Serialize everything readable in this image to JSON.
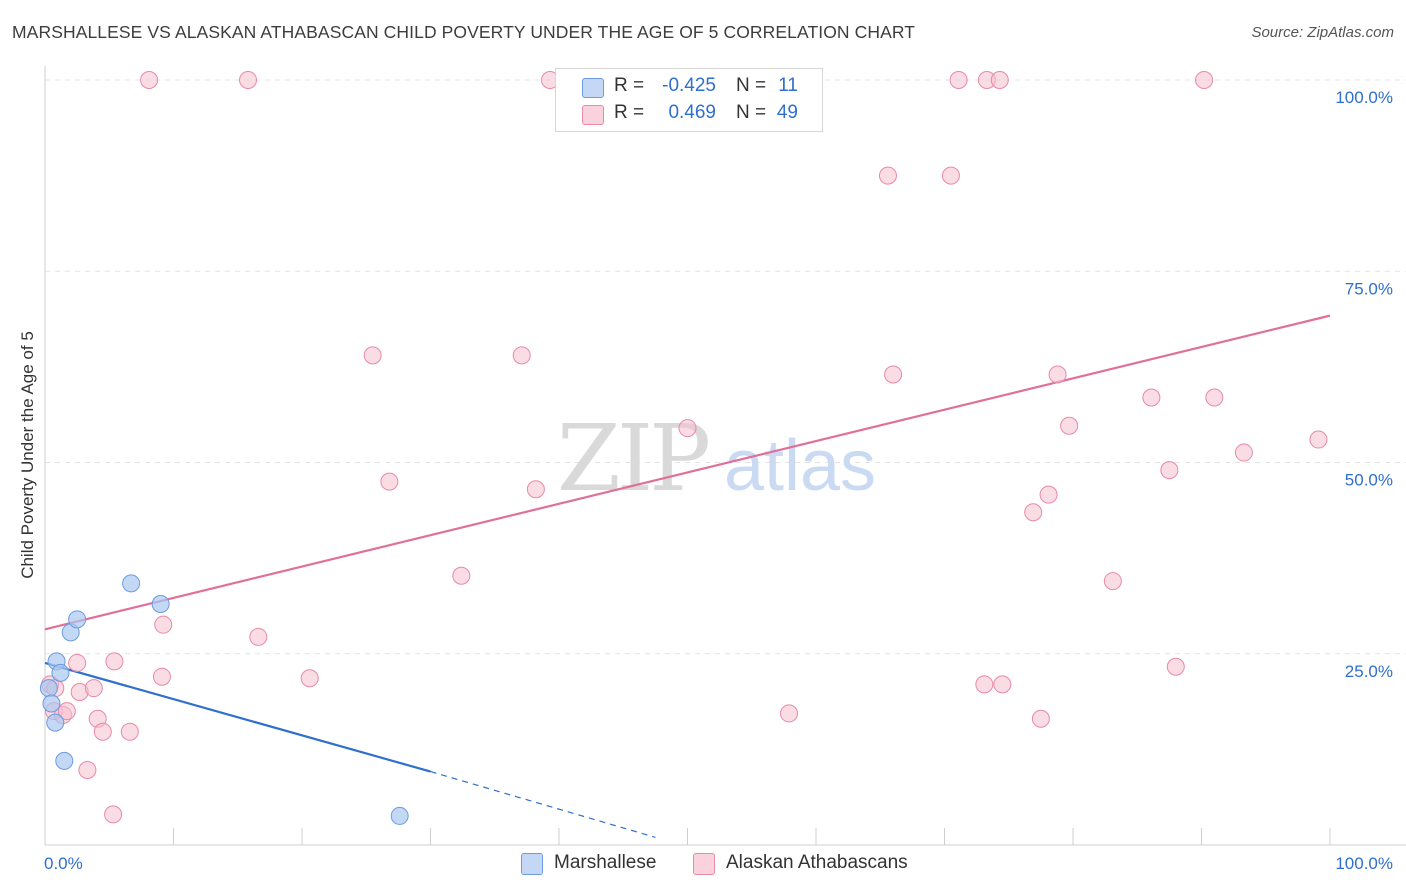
{
  "header": {
    "title": "MARSHALLESE VS ALASKAN ATHABASCAN CHILD POVERTY UNDER THE AGE OF 5 CORRELATION CHART",
    "source": "Source: ZipAtlas.com"
  },
  "watermark": {
    "zip": "ZIP",
    "atlas": "atlas"
  },
  "colors": {
    "blue_fill": "#a9c7f0",
    "blue_stroke": "#6c9be0",
    "blue_line": "#2f6fce",
    "pink_fill": "#f6bfd0",
    "pink_stroke": "#e78aa8",
    "pink_line": "#e0709a",
    "value_text": "#2f6fce",
    "grid": "#e3e3e3"
  },
  "legend": {
    "rows": [
      {
        "r_label": "R =",
        "r_value": "-0.425",
        "n_label": "N =",
        "n_value": "11"
      },
      {
        "r_label": "R =",
        "r_value": "0.469",
        "n_label": "N =",
        "n_value": "49"
      }
    ]
  },
  "bottom_legend": {
    "items": [
      "Marshallese",
      "Alaskan Athabascans"
    ]
  },
  "chart_data": {
    "type": "scatter",
    "title": "MARSHALLESE VS ALASKAN ATHABASCAN CHILD POVERTY UNDER THE AGE OF 5 CORRELATION CHART",
    "xlabel": "",
    "ylabel": "Child Poverty Under the Age of 5",
    "xlim": [
      0,
      100
    ],
    "ylim": [
      0,
      100
    ],
    "x_tick_labels": {
      "0": "0.0%",
      "100": "100.0%"
    },
    "y_ticks": [
      25,
      50,
      75,
      100
    ],
    "y_tick_labels": [
      "25.0%",
      "50.0%",
      "75.0%",
      "100.0%"
    ],
    "grid": true,
    "legend_position": "top-center",
    "series": [
      {
        "name": "Marshallese",
        "r": -0.425,
        "n": 11,
        "points": [
          [
            0.3,
            20.5
          ],
          [
            0.5,
            18.5
          ],
          [
            0.8,
            16.0
          ],
          [
            0.9,
            24.0
          ],
          [
            1.2,
            22.5
          ],
          [
            1.5,
            11.0
          ],
          [
            2.0,
            27.8
          ],
          [
            2.5,
            29.5
          ],
          [
            6.7,
            34.2
          ],
          [
            9.0,
            31.5
          ],
          [
            27.6,
            3.8
          ]
        ],
        "trend": {
          "x0": 0,
          "y0": 23.8,
          "x1": 30,
          "y1": 9.6,
          "dash_x1": 47.5,
          "dash_y1": 1.0
        }
      },
      {
        "name": "Alaskan Athabascans",
        "r": 0.469,
        "n": 49,
        "points": [
          [
            0.4,
            21.0
          ],
          [
            0.7,
            17.5
          ],
          [
            0.8,
            20.5
          ],
          [
            1.4,
            17.0
          ],
          [
            1.7,
            17.5
          ],
          [
            2.5,
            23.8
          ],
          [
            2.7,
            20.0
          ],
          [
            3.3,
            9.8
          ],
          [
            3.8,
            20.5
          ],
          [
            4.1,
            16.5
          ],
          [
            4.5,
            14.8
          ],
          [
            5.4,
            24.0
          ],
          [
            5.3,
            4.0
          ],
          [
            6.6,
            14.8
          ],
          [
            8.1,
            100.0
          ],
          [
            9.1,
            22.0
          ],
          [
            9.2,
            28.8
          ],
          [
            15.8,
            100.0
          ],
          [
            16.6,
            27.2
          ],
          [
            20.6,
            21.8
          ],
          [
            25.5,
            64.0
          ],
          [
            26.8,
            47.5
          ],
          [
            32.4,
            35.2
          ],
          [
            37.1,
            64.0
          ],
          [
            38.2,
            46.5
          ],
          [
            39.3,
            100.0
          ],
          [
            50.0,
            54.5
          ],
          [
            57.9,
            17.2
          ],
          [
            65.6,
            87.5
          ],
          [
            66.0,
            61.5
          ],
          [
            70.5,
            87.5
          ],
          [
            71.1,
            100.0
          ],
          [
            73.1,
            21.0
          ],
          [
            74.5,
            21.0
          ],
          [
            73.3,
            100.0
          ],
          [
            74.3,
            100.0
          ],
          [
            76.9,
            43.5
          ],
          [
            77.5,
            16.5
          ],
          [
            78.1,
            45.8
          ],
          [
            78.8,
            61.5
          ],
          [
            79.7,
            54.8
          ],
          [
            83.1,
            34.5
          ],
          [
            86.1,
            58.5
          ],
          [
            87.5,
            49.0
          ],
          [
            88.0,
            23.3
          ],
          [
            90.2,
            100.0
          ],
          [
            91.0,
            58.5
          ],
          [
            93.3,
            51.3
          ],
          [
            99.1,
            53.0
          ]
        ],
        "trend": {
          "x0": 0,
          "y0": 28.2,
          "x1": 100,
          "y1": 69.2
        }
      }
    ]
  }
}
